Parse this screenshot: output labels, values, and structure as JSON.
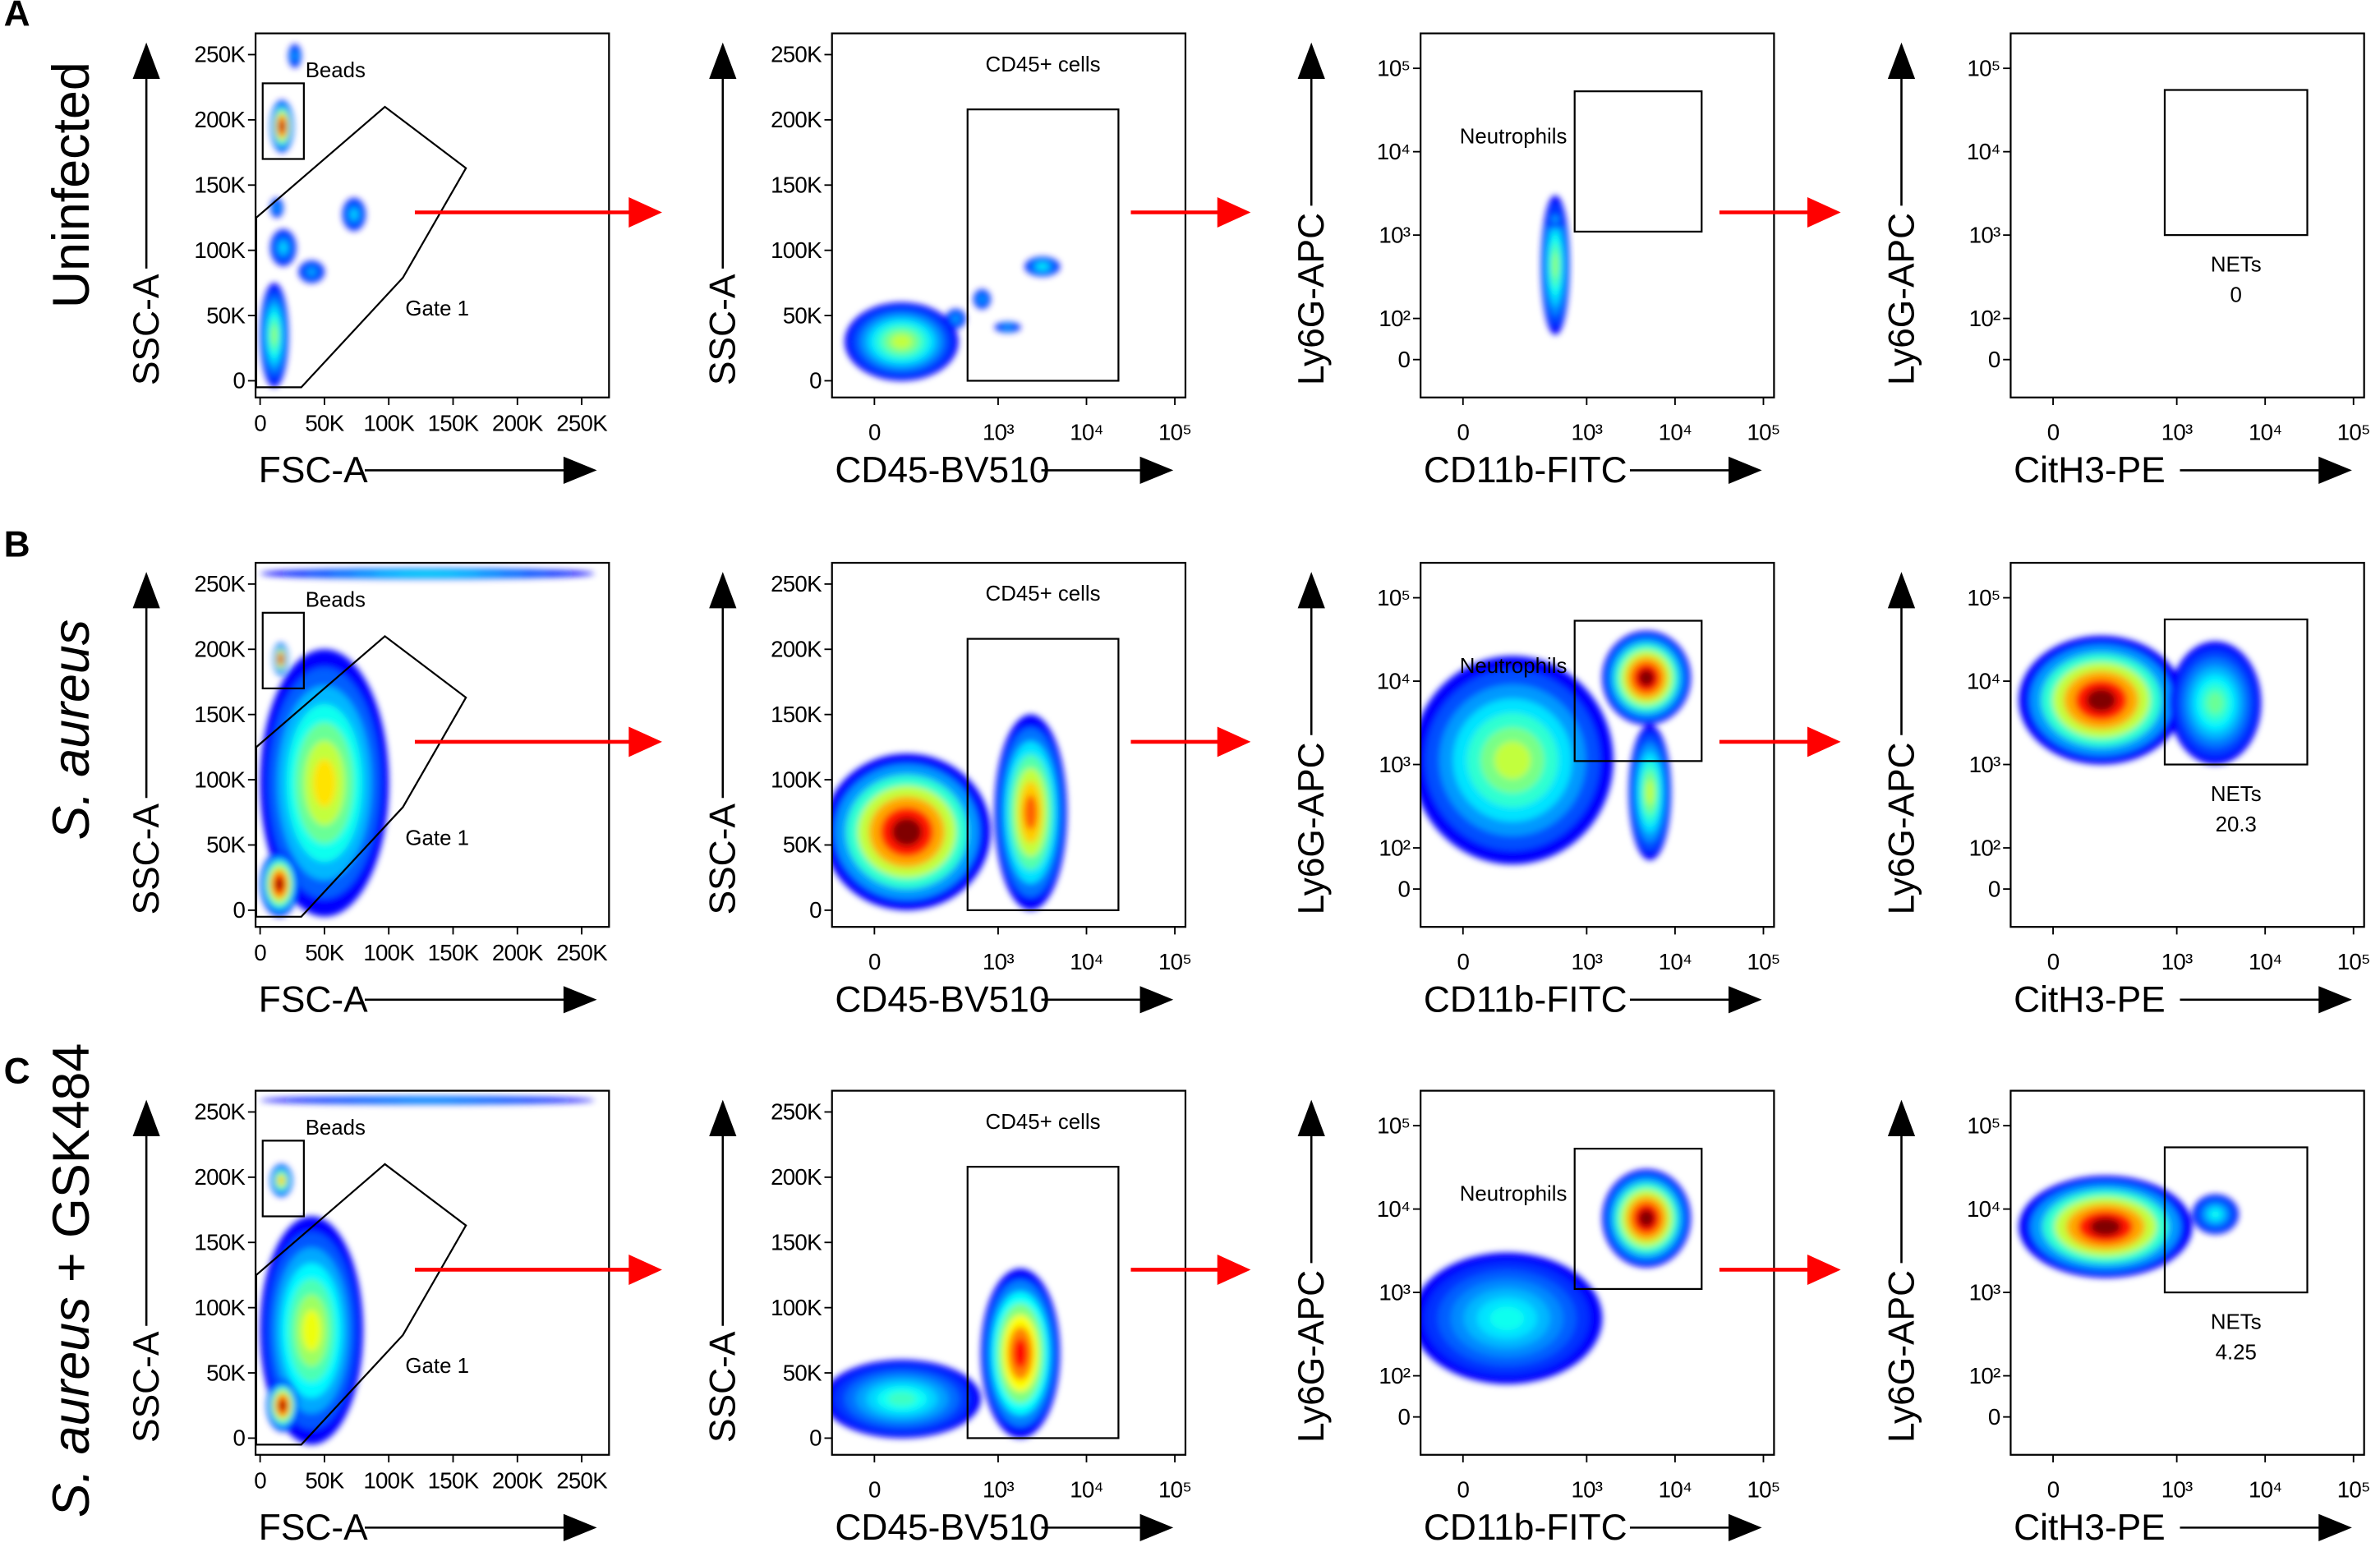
{
  "panels": [
    {
      "letter": "A",
      "condition": "Uninfected"
    },
    {
      "letter": "B",
      "condition_italic": "S. aureus"
    },
    {
      "letter": "C",
      "condition_italic": "S. aureus",
      "condition_rest": " + GSK484"
    }
  ],
  "colors": {
    "arrow": "#ff0000",
    "colormap": "jet"
  },
  "chart_data": [
    {
      "type": "density",
      "panel": "A",
      "x_label": "FSC-A",
      "y_label": "SSC-A",
      "x_scale": "linear",
      "y_scale": "linear",
      "x_ticks": [
        "0",
        "50K",
        "100K",
        "150K",
        "200K",
        "250K"
      ],
      "y_ticks": [
        "0",
        "50K",
        "100K",
        "150K",
        "200K",
        "250K"
      ],
      "gates": [
        {
          "name": "Beads",
          "shape": "rect",
          "x": [
            2000,
            34000
          ],
          "y": [
            170000,
            228000
          ],
          "label": "Beads"
        },
        {
          "name": "Gate 1",
          "shape": "polygon",
          "points": [
            [
              -3000,
              125000
            ],
            [
              97000,
              210000
            ],
            [
              160000,
              163000
            ],
            [
              111000,
              79000
            ],
            [
              32000,
              -5000
            ],
            [
              -3000,
              -5000
            ]
          ],
          "label": "Gate 1"
        }
      ],
      "populations": [
        {
          "x": [
            8000,
            26000
          ],
          "y": [
            175000,
            215000
          ],
          "peak": 1
        },
        {
          "x": [
            0,
            22000
          ],
          "y": [
            -5000,
            75000
          ],
          "peak": 0.45
        },
        {
          "x": [
            8000,
            28000
          ],
          "y": [
            88000,
            116000
          ],
          "peak": 0.25
        },
        {
          "x": [
            30000,
            50000
          ],
          "y": [
            75000,
            92000
          ],
          "peak": 0.2
        },
        {
          "x": [
            64000,
            82000
          ],
          "y": [
            115000,
            140000
          ],
          "peak": 0.25
        },
        {
          "x": [
            8000,
            18000
          ],
          "y": [
            125000,
            140000
          ],
          "peak": 0.2
        },
        {
          "x": [
            22000,
            32000
          ],
          "y": [
            240000,
            258000
          ],
          "peak": 0.2
        }
      ]
    },
    {
      "type": "density",
      "panel": "A",
      "x_label": "CD45-BV510",
      "y_label": "SSC-A",
      "x_scale": "biexponential",
      "y_scale": "linear",
      "x_ticks": [
        "0",
        "10³",
        "10⁴",
        "10⁵"
      ],
      "y_ticks": [
        "0",
        "50K",
        "100K",
        "150K",
        "200K",
        "250K"
      ],
      "gates": [
        {
          "name": "CD45+ cells",
          "shape": "rect",
          "x": [
            400,
            23000
          ],
          "y": [
            0,
            208000
          ],
          "label": "CD45+ cells"
        }
      ],
      "populations": [
        {
          "x": [
            -40,
            300
          ],
          "y": [
            0,
            60000
          ],
          "peak": 0.5
        },
        {
          "x": [
            2000,
            5000
          ],
          "y": [
            80000,
            95000
          ],
          "peak": 0.3
        },
        {
          "x": [
            480,
            800
          ],
          "y": [
            55000,
            70000
          ],
          "peak": 0.2
        },
        {
          "x": [
            900,
            1800
          ],
          "y": [
            37000,
            45000
          ],
          "peak": 0.2
        },
        {
          "x": [
            200,
            380
          ],
          "y": [
            40000,
            55000
          ],
          "peak": 0.2
        }
      ]
    },
    {
      "type": "density",
      "panel": "A",
      "x_label": "CD11b-FITC",
      "y_label": "Ly6G-APC",
      "x_scale": "biexponential",
      "y_scale": "biexponential",
      "x_ticks": [
        "0",
        "10³",
        "10⁴",
        "10⁵"
      ],
      "y_ticks": [
        "0",
        "10²",
        "10³",
        "10⁴",
        "10⁵"
      ],
      "gates": [
        {
          "name": "Neutrophils",
          "shape": "rect",
          "x": [
            700,
            20000
          ],
          "y": [
            1100,
            53000
          ],
          "label": "Neutrophils"
        }
      ],
      "populations": [
        {
          "x": [
            250,
            600
          ],
          "y": [
            60,
            3000
          ],
          "peak": 0.45
        },
        {
          "x": [
            300,
            500
          ],
          "y": [
            1200,
            2000
          ],
          "peak": 0.2
        }
      ]
    },
    {
      "type": "density",
      "panel": "A",
      "x_label": "CitH3-PE",
      "y_label": "Ly6G-APC",
      "x_scale": "biexponential",
      "y_scale": "biexponential",
      "x_ticks": [
        "0",
        "10³",
        "10⁴",
        "10⁵"
      ],
      "y_ticks": [
        "0",
        "10²",
        "10³",
        "10⁴",
        "10⁵"
      ],
      "gates": [
        {
          "name": "NETs",
          "shape": "rect",
          "x": [
            700,
            30000
          ],
          "y": [
            1000,
            55000
          ],
          "label": "NETs",
          "value": "0"
        }
      ],
      "populations": []
    },
    {
      "type": "density",
      "panel": "B",
      "x_label": "FSC-A",
      "y_label": "SSC-A",
      "x_scale": "linear",
      "y_scale": "linear",
      "x_ticks": [
        "0",
        "50K",
        "100K",
        "150K",
        "200K",
        "250K"
      ],
      "y_ticks": [
        "0",
        "50K",
        "100K",
        "150K",
        "200K",
        "250K"
      ],
      "gates": [
        {
          "name": "Beads",
          "shape": "rect",
          "x": [
            2000,
            34000
          ],
          "y": [
            170000,
            228000
          ],
          "label": "Beads"
        },
        {
          "name": "Gate 1",
          "shape": "polygon",
          "points": [
            [
              -3000,
              125000
            ],
            [
              97000,
              210000
            ],
            [
              160000,
              163000
            ],
            [
              111000,
              79000
            ],
            [
              32000,
              -5000
            ],
            [
              -3000,
              -5000
            ]
          ],
          "label": "Gate 1"
        }
      ],
      "populations": [
        {
          "x": [
            0,
            100000
          ],
          "y": [
            -5000,
            200000
          ],
          "peak": 0.6
        },
        {
          "x": [
            0,
            30000
          ],
          "y": [
            -5000,
            45000
          ],
          "peak": 1
        },
        {
          "x": [
            10000,
            22000
          ],
          "y": [
            180000,
            205000
          ],
          "peak": 1
        },
        {
          "x": [
            0,
            260000
          ],
          "y": [
            254000,
            262000
          ],
          "peak": 0.3
        }
      ]
    },
    {
      "type": "density",
      "panel": "B",
      "x_label": "CD45-BV510",
      "y_label": "SSC-A",
      "x_scale": "biexponential",
      "y_scale": "linear",
      "x_ticks": [
        "0",
        "10³",
        "10⁴",
        "10⁵"
      ],
      "y_ticks": [
        "0",
        "50K",
        "100K",
        "150K",
        "200K",
        "250K"
      ],
      "gates": [
        {
          "name": "CD45+ cells",
          "shape": "rect",
          "x": [
            400,
            23000
          ],
          "y": [
            0,
            208000
          ],
          "label": "CD45+ cells"
        }
      ],
      "populations": [
        {
          "x": [
            -100,
            800
          ],
          "y": [
            0,
            120000
          ],
          "peak": 1
        },
        {
          "x": [
            900,
            6000
          ],
          "y": [
            0,
            150000
          ],
          "peak": 0.75
        }
      ]
    },
    {
      "type": "density",
      "panel": "B",
      "x_label": "CD11b-FITC",
      "y_label": "Ly6G-APC",
      "x_scale": "biexponential",
      "y_scale": "biexponential",
      "x_ticks": [
        "0",
        "10³",
        "10⁴",
        "10⁵"
      ],
      "y_ticks": [
        "0",
        "10²",
        "10³",
        "10⁴",
        "10⁵"
      ],
      "gates": [
        {
          "name": "Neutrophils",
          "shape": "rect",
          "x": [
            700,
            20000
          ],
          "y": [
            1100,
            53000
          ],
          "label": "Neutrophils"
        }
      ],
      "populations": [
        {
          "x": [
            -100,
            2000
          ],
          "y": [
            60,
            20000
          ],
          "peak": 0.5
        },
        {
          "x": [
            1500,
            15000
          ],
          "y": [
            3000,
            40000
          ],
          "peak": 1
        },
        {
          "x": [
            3000,
            9000
          ],
          "y": [
            70,
            3000
          ],
          "peak": 0.5
        }
      ]
    },
    {
      "type": "density",
      "panel": "B",
      "x_label": "CitH3-PE",
      "y_label": "Ly6G-APC",
      "x_scale": "biexponential",
      "y_scale": "biexponential",
      "x_ticks": [
        "0",
        "10³",
        "10⁴",
        "10⁵"
      ],
      "y_ticks": [
        "0",
        "10²",
        "10³",
        "10⁴",
        "10⁵"
      ],
      "gates": [
        {
          "name": "NETs",
          "shape": "rect",
          "x": [
            700,
            30000
          ],
          "y": [
            1000,
            55000
          ],
          "label": "NETs",
          "value": "20.3"
        }
      ],
      "populations": [
        {
          "x": [
            -50,
            1200
          ],
          "y": [
            1000,
            35000
          ],
          "peak": 1
        },
        {
          "x": [
            800,
            9000
          ],
          "y": [
            1000,
            30000
          ],
          "peak": 0.4
        }
      ]
    },
    {
      "type": "density",
      "panel": "C",
      "x_label": "FSC-A",
      "y_label": "SSC-A",
      "x_scale": "linear",
      "y_scale": "linear",
      "x_ticks": [
        "0",
        "50K",
        "100K",
        "150K",
        "200K",
        "250K"
      ],
      "y_ticks": [
        "0",
        "50K",
        "100K",
        "150K",
        "200K",
        "250K"
      ],
      "gates": [
        {
          "name": "Beads",
          "shape": "rect",
          "x": [
            2000,
            34000
          ],
          "y": [
            170000,
            228000
          ],
          "label": "Beads"
        },
        {
          "name": "Gate 1",
          "shape": "polygon",
          "points": [
            [
              -3000,
              125000
            ],
            [
              97000,
              210000
            ],
            [
              160000,
              163000
            ],
            [
              111000,
              79000
            ],
            [
              32000,
              -5000
            ],
            [
              -3000,
              -5000
            ]
          ],
          "label": "Gate 1"
        }
      ],
      "populations": [
        {
          "x": [
            0,
            80000
          ],
          "y": [
            -5000,
            170000
          ],
          "peak": 0.55
        },
        {
          "x": [
            5000,
            30000
          ],
          "y": [
            5000,
            45000
          ],
          "peak": 1
        },
        {
          "x": [
            8000,
            25000
          ],
          "y": [
            185000,
            210000
          ],
          "peak": 0.7
        },
        {
          "x": [
            0,
            260000
          ],
          "y": [
            256000,
            262000
          ],
          "peak": 0.2
        }
      ]
    },
    {
      "type": "density",
      "panel": "C",
      "x_label": "CD45-BV510",
      "y_label": "SSC-A",
      "x_scale": "biexponential",
      "y_scale": "linear",
      "x_ticks": [
        "0",
        "10³",
        "10⁴",
        "10⁵"
      ],
      "y_ticks": [
        "0",
        "50K",
        "100K",
        "150K",
        "200K",
        "250K"
      ],
      "gates": [
        {
          "name": "CD45+ cells",
          "shape": "rect",
          "x": [
            400,
            23000
          ],
          "y": [
            0,
            208000
          ],
          "label": "CD45+ cells"
        }
      ],
      "populations": [
        {
          "x": [
            -100,
            600
          ],
          "y": [
            0,
            60000
          ],
          "peak": 0.35
        },
        {
          "x": [
            600,
            5000
          ],
          "y": [
            0,
            130000
          ],
          "peak": 0.85
        }
      ]
    },
    {
      "type": "density",
      "panel": "C",
      "x_label": "CD11b-FITC",
      "y_label": "Ly6G-APC",
      "x_scale": "biexponential",
      "y_scale": "biexponential",
      "x_ticks": [
        "0",
        "10³",
        "10⁴",
        "10⁵"
      ],
      "y_ticks": [
        "0",
        "10²",
        "10³",
        "10⁴",
        "10⁵"
      ],
      "gates": [
        {
          "name": "Neutrophils",
          "shape": "rect",
          "x": [
            700,
            20000
          ],
          "y": [
            1100,
            53000
          ],
          "label": "Neutrophils"
        }
      ],
      "populations": [
        {
          "x": [
            -100,
            1500
          ],
          "y": [
            80,
            3000
          ],
          "peak": 0.3
        },
        {
          "x": [
            1500,
            15000
          ],
          "y": [
            2000,
            30000
          ],
          "peak": 1
        }
      ]
    },
    {
      "type": "density",
      "panel": "C",
      "x_label": "CitH3-PE",
      "y_label": "Ly6G-APC",
      "x_scale": "biexponential",
      "y_scale": "biexponential",
      "x_ticks": [
        "0",
        "10³",
        "10⁴",
        "10⁵"
      ],
      "y_ticks": [
        "0",
        "10²",
        "10³",
        "10⁴",
        "10⁵"
      ],
      "gates": [
        {
          "name": "NETs",
          "shape": "rect",
          "x": [
            700,
            30000
          ],
          "y": [
            1000,
            55000
          ],
          "label": "NETs",
          "value": "4.25"
        }
      ],
      "populations": [
        {
          "x": [
            -50,
            1500
          ],
          "y": [
            1500,
            25000
          ],
          "peak": 1
        },
        {
          "x": [
            1500,
            5000
          ],
          "y": [
            5000,
            15000
          ],
          "peak": 0.3
        }
      ]
    }
  ]
}
